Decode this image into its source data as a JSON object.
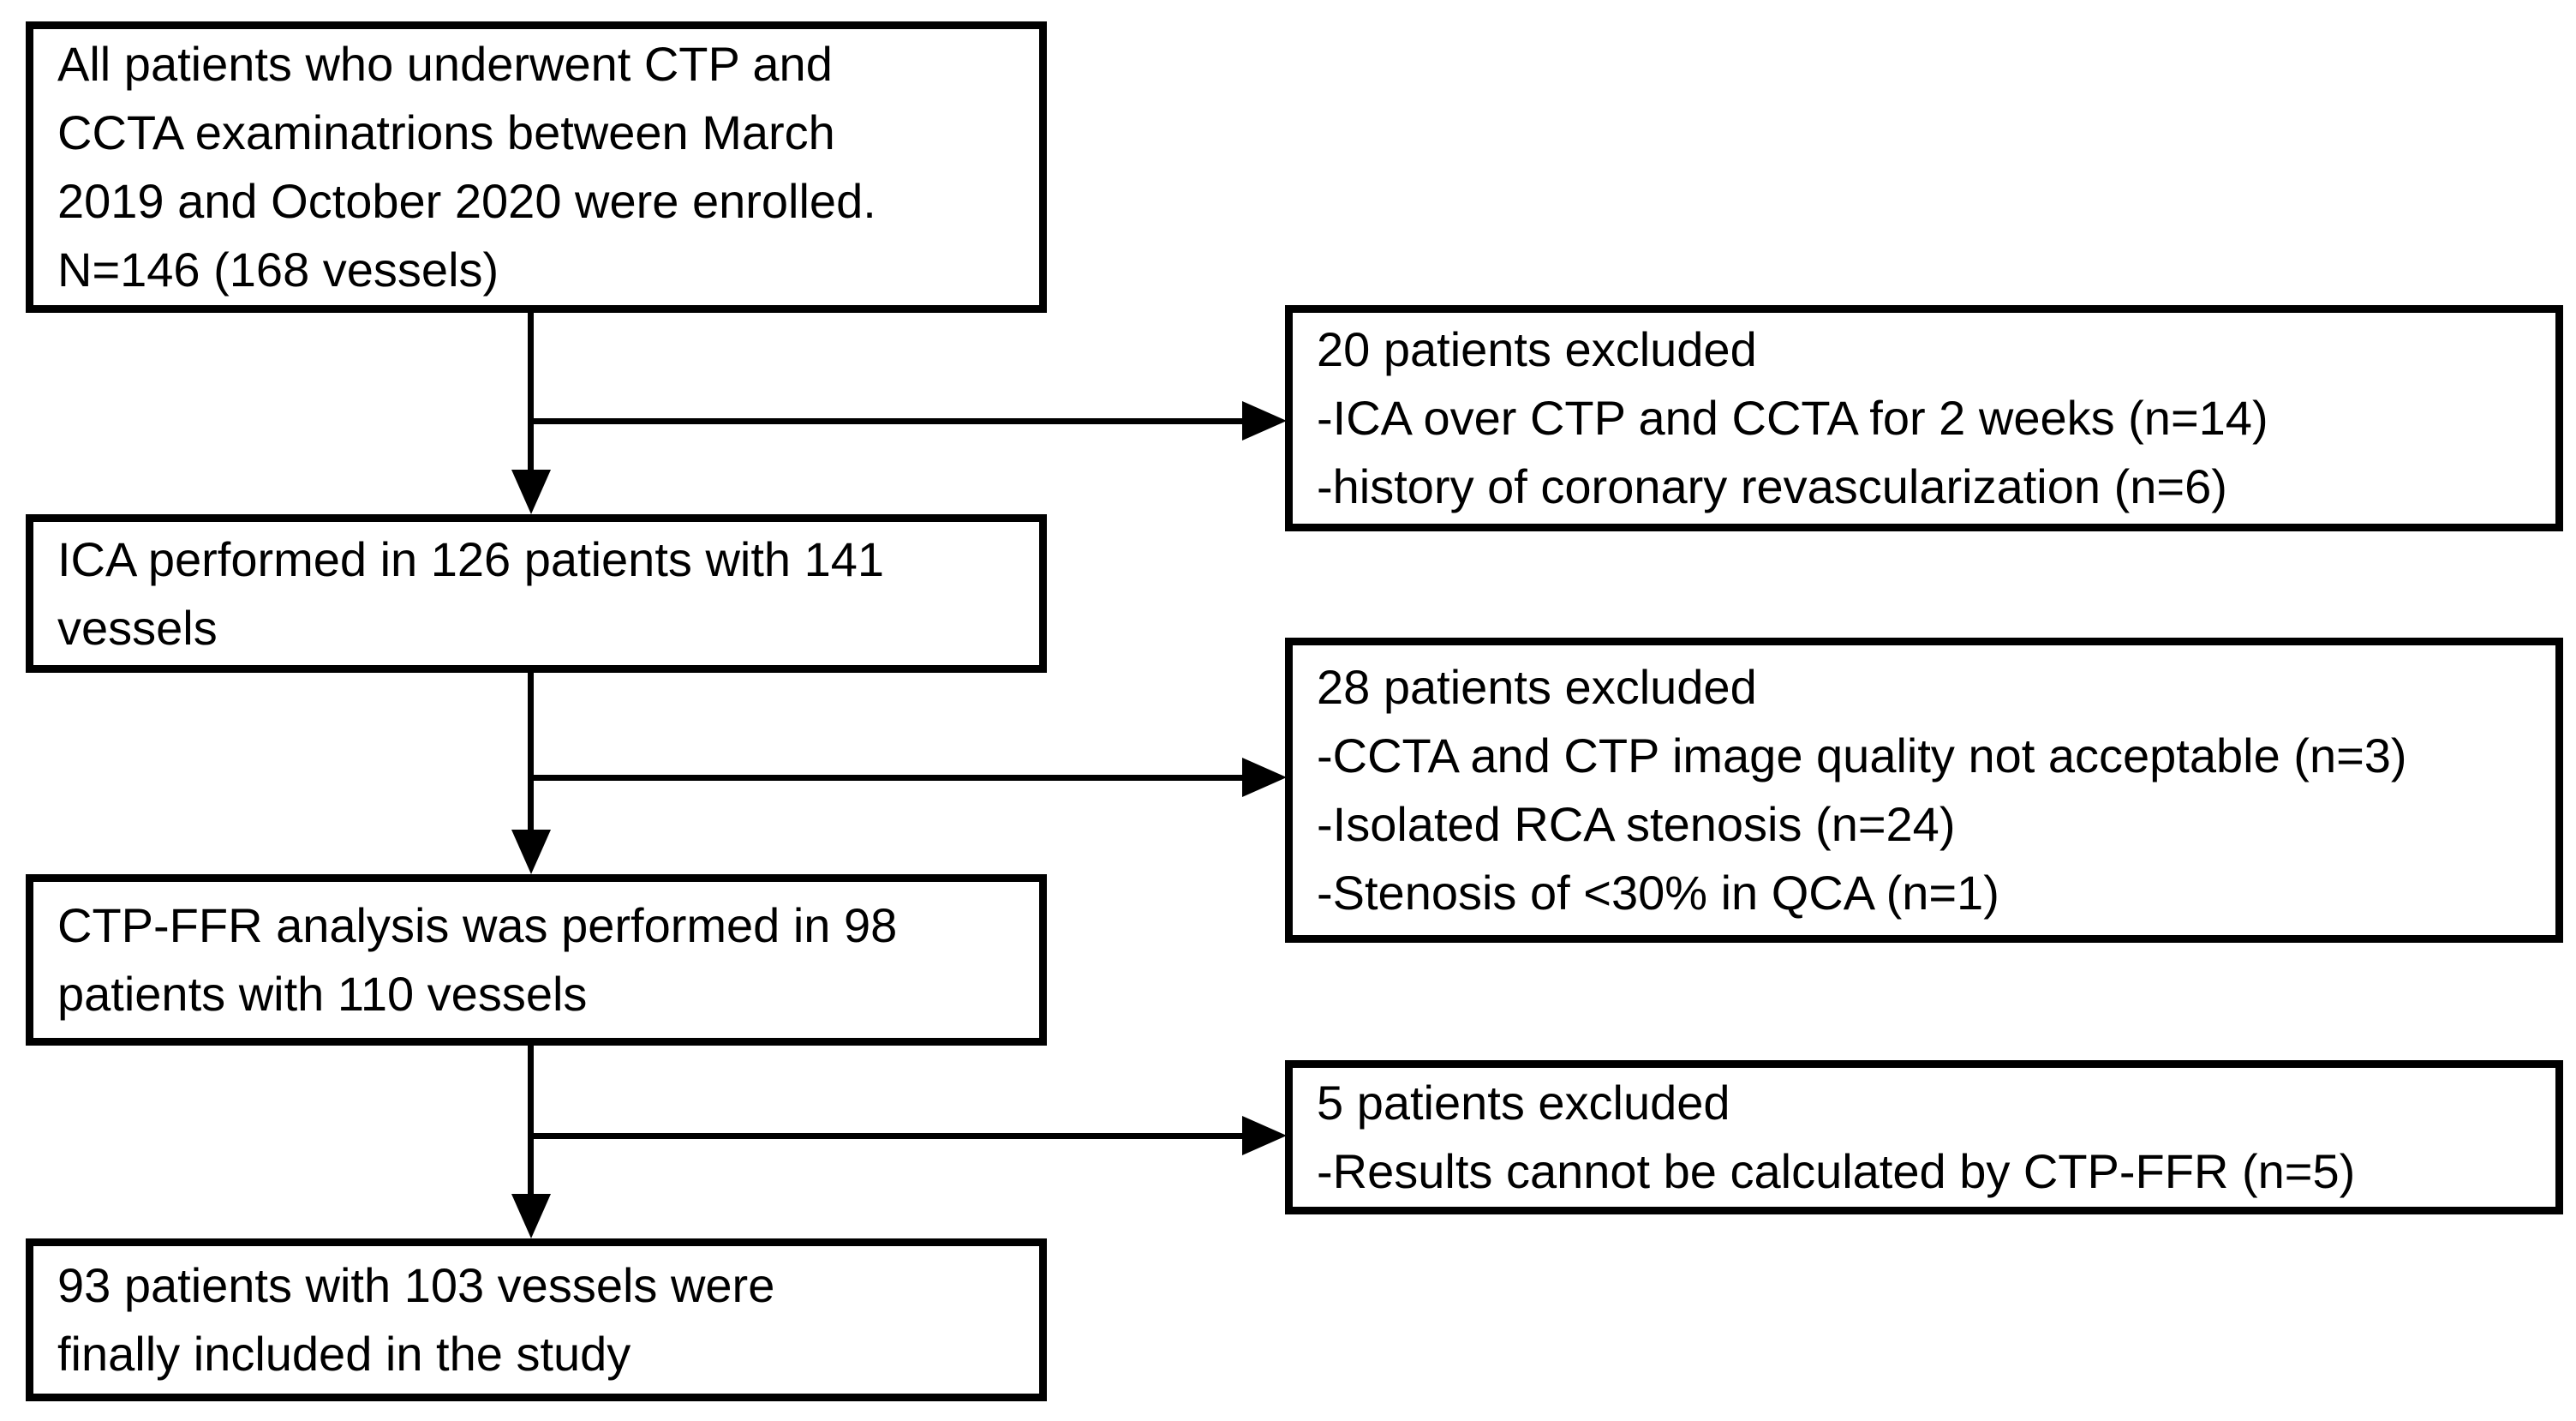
{
  "flowchart": {
    "colors": {
      "ink": "#000000",
      "background": "#ffffff"
    },
    "boxes": {
      "enrolled": {
        "lines": [
          "All patients who underwent CTP and",
          "CCTA examinatrions between March",
          "2019 and October 2020 were enrolled.",
          "N=146 (168 vessels)"
        ]
      },
      "excluded1": {
        "lines": [
          "20 patients excluded",
          "-ICA over CTP and CCTA for 2 weeks (n=14)",
          "-history of coronary revascularization (n=6)"
        ]
      },
      "ica": {
        "lines": [
          "ICA performed in 126 patients with 141",
          "vessels"
        ]
      },
      "excluded2": {
        "lines": [
          "28 patients excluded",
          "-CCTA and CTP image quality not acceptable (n=3)",
          "-Isolated RCA stenosis (n=24)",
          "-Stenosis of <30% in QCA (n=1)"
        ]
      },
      "ctpffr": {
        "lines": [
          "CTP-FFR analysis was performed in 98",
          "patients with 110 vessels"
        ]
      },
      "excluded3": {
        "lines": [
          "5 patients excluded",
          "-Results cannot be calculated by CTP-FFR (n=5)"
        ]
      },
      "final": {
        "lines": [
          "93 patients with 103 vessels were",
          "finally included in the study"
        ]
      }
    }
  }
}
